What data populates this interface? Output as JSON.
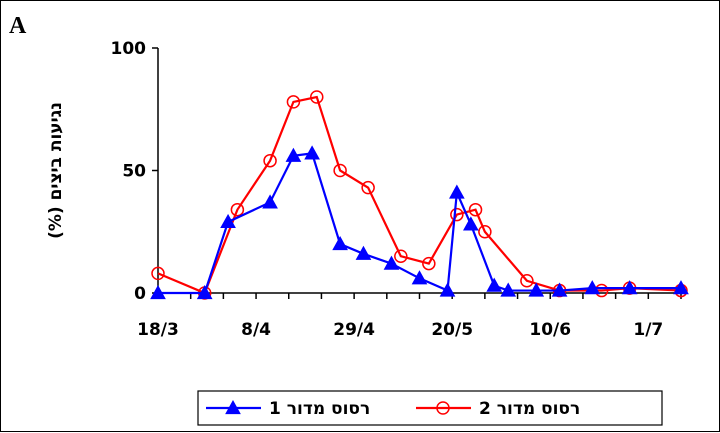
{
  "panel_label": "A",
  "chart_data": {
    "type": "line",
    "title": "",
    "xlabel": "",
    "ylabel": "נגיעות ביצים (%)",
    "ylim": [
      0,
      100
    ],
    "yticks": [
      "0",
      "50",
      "100"
    ],
    "xtick_labels": [
      "18/3",
      "8/4",
      "29/4",
      "20/5",
      "10/6",
      "1/7"
    ],
    "xlim_days": [
      0,
      112
    ],
    "grid": false,
    "legend_position": "bottom-center",
    "series": [
      {
        "name": "רסוס מדור 1",
        "color": "#0000FF",
        "marker": "triangle",
        "x_days": [
          0,
          10,
          15,
          24,
          29,
          33,
          39,
          44,
          50,
          56,
          62,
          64,
          67,
          72,
          75,
          81,
          86,
          93,
          101,
          112
        ],
        "values": [
          0,
          0,
          29,
          37,
          56,
          57,
          20,
          16,
          12,
          6,
          1,
          41,
          28,
          3,
          1,
          1,
          1,
          2,
          2,
          2
        ]
      },
      {
        "name": "רסוס מדור 2",
        "color": "#FF0000",
        "marker": "circle",
        "x_days": [
          0,
          10,
          17,
          24,
          29,
          34,
          39,
          45,
          52,
          58,
          64,
          68,
          70,
          79,
          86,
          95,
          101,
          112
        ],
        "values": [
          8,
          0,
          34,
          54,
          78,
          80,
          50,
          43,
          15,
          12,
          32,
          34,
          25,
          5,
          1,
          1,
          2,
          1
        ]
      }
    ]
  }
}
